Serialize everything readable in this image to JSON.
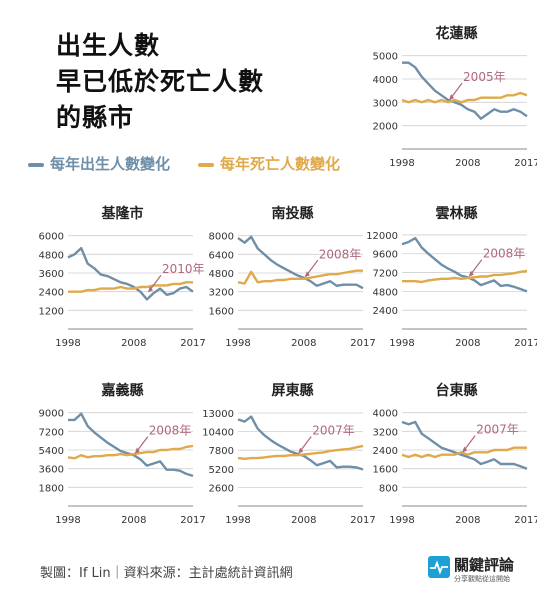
{
  "title_lines": [
    "出生人數",
    "早已低於死亡人數",
    "的縣市"
  ],
  "legend": {
    "births": "每年出生人數變化",
    "deaths": "每年死亡人數變化",
    "births_color": "#6f8fa8",
    "deaths_color": "#e0a94a"
  },
  "colors": {
    "births": "#6f8fa8",
    "deaths": "#e0a94a",
    "annotation": "#b0677c",
    "grid": "#cfcfcf"
  },
  "footer": {
    "credit": "製圖：If Lin｜資料來源：主計處統計資訊網"
  },
  "logo": {
    "name": "關鍵評論",
    "tagline": "分享觀點從這開始",
    "icon": "pulse-icon"
  },
  "chart_data": [
    {
      "type": "line",
      "title": "花蓮縣",
      "x": [
        1998,
        1999,
        2000,
        2001,
        2002,
        2003,
        2004,
        2005,
        2006,
        2007,
        2008,
        2009,
        2010,
        2011,
        2012,
        2013,
        2014,
        2015,
        2016,
        2017
      ],
      "xticks": [
        "1998",
        "2008",
        "2017"
      ],
      "yticks": [
        2000,
        3000,
        4000,
        5000
      ],
      "ylim": [
        1000,
        5200
      ],
      "series": [
        {
          "key": "births",
          "values": [
            4700,
            4700,
            4500,
            4100,
            3800,
            3500,
            3300,
            3100,
            3000,
            2900,
            2700,
            2600,
            2300,
            2500,
            2700,
            2600,
            2600,
            2700,
            2600,
            2400
          ]
        },
        {
          "key": "deaths",
          "values": [
            3100,
            3000,
            3100,
            3000,
            3100,
            3000,
            3100,
            3000,
            3100,
            3000,
            3100,
            3100,
            3200,
            3200,
            3200,
            3200,
            3300,
            3300,
            3400,
            3300
          ]
        }
      ],
      "annotation": {
        "label": "2005年",
        "year": 2005
      }
    },
    {
      "type": "line",
      "title": "基隆市",
      "x": [
        1998,
        1999,
        2000,
        2001,
        2002,
        2003,
        2004,
        2005,
        2006,
        2007,
        2008,
        2009,
        2010,
        2011,
        2012,
        2013,
        2014,
        2015,
        2016,
        2017
      ],
      "xticks": [
        "1998",
        "2008",
        "2017"
      ],
      "yticks": [
        1200,
        2400,
        3600,
        4800,
        6000
      ],
      "ylim": [
        0,
        6300
      ],
      "series": [
        {
          "key": "births",
          "values": [
            4600,
            4800,
            5200,
            4200,
            3900,
            3500,
            3400,
            3200,
            3000,
            2900,
            2700,
            2400,
            1900,
            2300,
            2600,
            2200,
            2300,
            2600,
            2700,
            2400
          ]
        },
        {
          "key": "deaths",
          "values": [
            2400,
            2400,
            2400,
            2500,
            2500,
            2600,
            2600,
            2600,
            2700,
            2600,
            2600,
            2700,
            2700,
            2800,
            2800,
            2800,
            2900,
            2900,
            3000,
            3000
          ]
        }
      ],
      "annotation": {
        "label": "2010年",
        "year": 2010
      }
    },
    {
      "type": "line",
      "title": "南投縣",
      "x": [
        1998,
        1999,
        2000,
        2001,
        2002,
        2003,
        2004,
        2005,
        2006,
        2007,
        2008,
        2009,
        2010,
        2011,
        2012,
        2013,
        2014,
        2015,
        2016,
        2017
      ],
      "xticks": [
        "1998",
        "2008",
        "2017"
      ],
      "yticks": [
        1600,
        3200,
        4800,
        6400,
        8000
      ],
      "ylim": [
        0,
        8400
      ],
      "series": [
        {
          "key": "births",
          "values": [
            7800,
            7400,
            7900,
            6900,
            6400,
            5900,
            5500,
            5200,
            4900,
            4600,
            4400,
            4100,
            3700,
            3900,
            4100,
            3700,
            3800,
            3800,
            3800,
            3500
          ]
        },
        {
          "key": "deaths",
          "values": [
            4000,
            3900,
            4900,
            4000,
            4100,
            4100,
            4200,
            4200,
            4300,
            4300,
            4300,
            4400,
            4500,
            4600,
            4700,
            4700,
            4800,
            4900,
            5000,
            5000
          ]
        }
      ],
      "annotation": {
        "label": "2008年",
        "year": 2008
      }
    },
    {
      "type": "line",
      "title": "雲林縣",
      "x": [
        1998,
        1999,
        2000,
        2001,
        2002,
        2003,
        2004,
        2005,
        2006,
        2007,
        2008,
        2009,
        2010,
        2011,
        2012,
        2013,
        2014,
        2015,
        2016,
        2017
      ],
      "xticks": [
        "1998",
        "2008",
        "2017"
      ],
      "yticks": [
        2400,
        4800,
        7200,
        9600,
        12000
      ],
      "ylim": [
        0,
        12500
      ],
      "series": [
        {
          "key": "births",
          "values": [
            10800,
            11100,
            11600,
            10400,
            9600,
            8900,
            8200,
            7700,
            7300,
            6800,
            6600,
            6200,
            5600,
            5900,
            6200,
            5500,
            5600,
            5400,
            5100,
            4800
          ]
        },
        {
          "key": "deaths",
          "values": [
            6100,
            6100,
            6100,
            6000,
            6200,
            6300,
            6400,
            6400,
            6500,
            6400,
            6500,
            6600,
            6700,
            6700,
            6900,
            6900,
            7000,
            7100,
            7300,
            7400
          ]
        }
      ],
      "annotation": {
        "label": "2008年",
        "year": 2008
      }
    },
    {
      "type": "line",
      "title": "嘉義縣",
      "x": [
        1998,
        1999,
        2000,
        2001,
        2002,
        2003,
        2004,
        2005,
        2006,
        2007,
        2008,
        2009,
        2010,
        2011,
        2012,
        2013,
        2014,
        2015,
        2016,
        2017
      ],
      "xticks": [
        "1998",
        "2008",
        "2017"
      ],
      "yticks": [
        1800,
        3600,
        5400,
        7200,
        9000
      ],
      "ylim": [
        0,
        9450
      ],
      "series": [
        {
          "key": "births",
          "values": [
            8300,
            8300,
            8900,
            7700,
            7100,
            6600,
            6100,
            5700,
            5300,
            5100,
            4900,
            4500,
            3900,
            4100,
            4300,
            3500,
            3500,
            3400,
            3100,
            2900
          ]
        },
        {
          "key": "deaths",
          "values": [
            4700,
            4600,
            4900,
            4700,
            4800,
            4800,
            4900,
            4900,
            5000,
            4900,
            5000,
            5100,
            5200,
            5200,
            5400,
            5400,
            5500,
            5500,
            5700,
            5800
          ]
        }
      ],
      "annotation": {
        "label": "2008年",
        "year": 2008
      }
    },
    {
      "type": "line",
      "title": "屏東縣",
      "x": [
        1998,
        1999,
        2000,
        2001,
        2002,
        2003,
        2004,
        2005,
        2006,
        2007,
        2008,
        2009,
        2010,
        2011,
        2012,
        2013,
        2014,
        2015,
        2016,
        2017
      ],
      "xticks": [
        "1998",
        "2008",
        "2017"
      ],
      "yticks": [
        2600,
        5200,
        7800,
        10400,
        13000
      ],
      "ylim": [
        0,
        13700
      ],
      "series": [
        {
          "key": "births",
          "values": [
            12100,
            11800,
            12500,
            10800,
            9900,
            9200,
            8600,
            8100,
            7600,
            7300,
            7000,
            6400,
            5700,
            6000,
            6300,
            5400,
            5500,
            5500,
            5400,
            5100
          ]
        },
        {
          "key": "deaths",
          "values": [
            6700,
            6600,
            6700,
            6700,
            6800,
            6900,
            7000,
            7000,
            7100,
            7100,
            7200,
            7300,
            7400,
            7500,
            7700,
            7800,
            7900,
            8000,
            8200,
            8400
          ]
        }
      ],
      "annotation": {
        "label": "2007年",
        "year": 2007
      }
    },
    {
      "type": "line",
      "title": "台東縣",
      "x": [
        1998,
        1999,
        2000,
        2001,
        2002,
        2003,
        2004,
        2005,
        2006,
        2007,
        2008,
        2009,
        2010,
        2011,
        2012,
        2013,
        2014,
        2015,
        2016,
        2017
      ],
      "xticks": [
        "1998",
        "2008",
        "2017"
      ],
      "yticks": [
        800,
        1600,
        2400,
        3200,
        4000
      ],
      "ylim": [
        0,
        4200
      ],
      "series": [
        {
          "key": "births",
          "values": [
            3600,
            3500,
            3600,
            3100,
            2900,
            2700,
            2500,
            2400,
            2300,
            2200,
            2100,
            2000,
            1800,
            1900,
            2000,
            1800,
            1800,
            1800,
            1700,
            1600
          ]
        },
        {
          "key": "deaths",
          "values": [
            2200,
            2100,
            2200,
            2100,
            2200,
            2100,
            2200,
            2200,
            2200,
            2300,
            2200,
            2300,
            2300,
            2300,
            2400,
            2400,
            2400,
            2500,
            2500,
            2500
          ]
        }
      ],
      "annotation": {
        "label": "2007年",
        "year": 2007
      }
    }
  ]
}
